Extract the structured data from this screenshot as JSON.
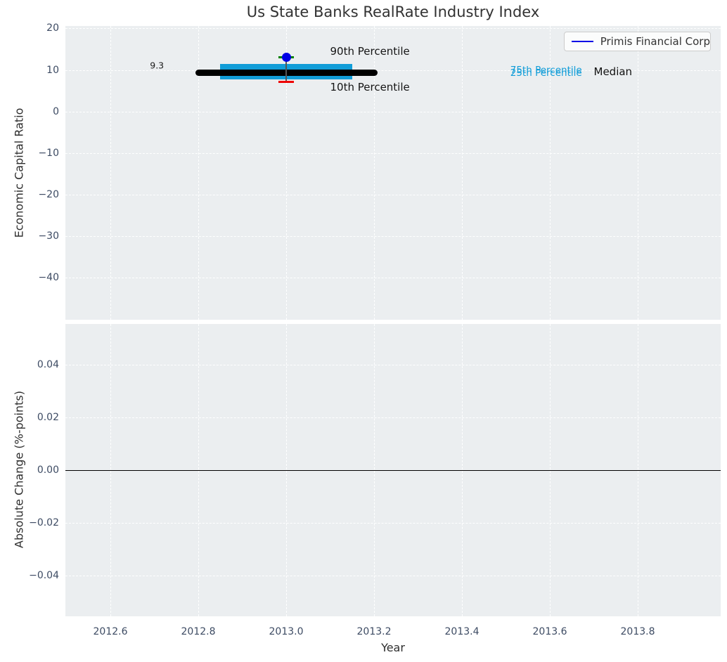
{
  "title": "Us State Banks RealRate Industry Index",
  "legend": {
    "label": "Primis Financial Corp",
    "line_color": "#0000e6"
  },
  "colors": {
    "figure_bg": "#ffffff",
    "axes_bg": "#ebeef0",
    "grid": "#ffffff",
    "tick_label": "#3d4b63",
    "text": "#2e2e2e",
    "iqr_box": "#119dd8",
    "median_line": "#000000",
    "p90_cap": "#008000",
    "p10_cap": "#ee0000",
    "whisker_line": "#555555",
    "company_marker": "#0000e6",
    "zero_line": "#000000"
  },
  "chart_data": [
    {
      "type": "boxplot",
      "subplot": "top",
      "ylabel": "Economic Capital Ratio",
      "xlabel": "",
      "grid": true,
      "legend_position": "upper right",
      "xlim": [
        2012.498,
        2013.989
      ],
      "ylim": [
        -49.6,
        21.0
      ],
      "xticks": {
        "values": [
          2012.6,
          2012.8,
          2013.0,
          2013.2,
          2013.4,
          2013.6,
          2013.8
        ],
        "labels": [
          "2012.6",
          "2012.8",
          "2013.0",
          "2013.2",
          "2013.4",
          "2013.6",
          "2013.8"
        ]
      },
      "yticks": {
        "values": [
          20,
          10,
          0,
          -10,
          -20,
          -30,
          -40
        ],
        "labels": [
          "20",
          "10",
          "0",
          "−10",
          "−20",
          "−30",
          "−40"
        ]
      },
      "box": {
        "year": 2013.0,
        "median": 9.3,
        "p25": 7.7,
        "p75": 11.4,
        "p10": 7.1,
        "p90": 13.1,
        "box_x_range": [
          2012.85,
          2013.15
        ],
        "median_x_range": [
          2012.8,
          2013.2
        ],
        "cap_half_width_years": 0.017
      },
      "company_point": {
        "label": "Primis Financial Corp",
        "year": 2013.0,
        "value": 13.1
      },
      "annotations": [
        {
          "text": "90th Percentile",
          "x": 2013.1,
          "y": 14.5,
          "color": "#151515",
          "size": 15
        },
        {
          "text": "10th Percentile",
          "x": 2013.1,
          "y": 5.9,
          "color": "#151515",
          "size": 15
        },
        {
          "text": "9.3",
          "x": 2012.69,
          "y": 11.1,
          "color": "#1a1a1a",
          "size": 12.5
        },
        {
          "text": "75th Percentile",
          "x": 2013.51,
          "y": 9.9,
          "color": "#119dd8",
          "size": 13.5
        },
        {
          "text": "25th Percentile",
          "x": 2013.51,
          "y": 9.3,
          "color": "#119dd8",
          "size": 13.5
        },
        {
          "text": "Median",
          "x": 2013.7,
          "y": 9.5,
          "color": "#111111",
          "size": 15
        }
      ]
    },
    {
      "type": "line",
      "subplot": "bottom",
      "ylabel": "Absolute Change (%-points)",
      "xlabel": "Year",
      "grid": true,
      "xlim": [
        2012.498,
        2013.989
      ],
      "ylim": [
        -0.0557,
        0.0552
      ],
      "xticks": {
        "values": [
          2012.6,
          2012.8,
          2013.0,
          2013.2,
          2013.4,
          2013.6,
          2013.8
        ],
        "labels": [
          "2012.6",
          "2012.8",
          "2013.0",
          "2013.2",
          "2013.4",
          "2013.6",
          "2013.8"
        ]
      },
      "yticks": {
        "values": [
          0.04,
          0.02,
          0.0,
          -0.02,
          -0.04
        ],
        "labels": [
          "0.04",
          "0.02",
          "0.00",
          "−0.02",
          "−0.04"
        ]
      },
      "zero_line": 0.0,
      "series": []
    }
  ]
}
